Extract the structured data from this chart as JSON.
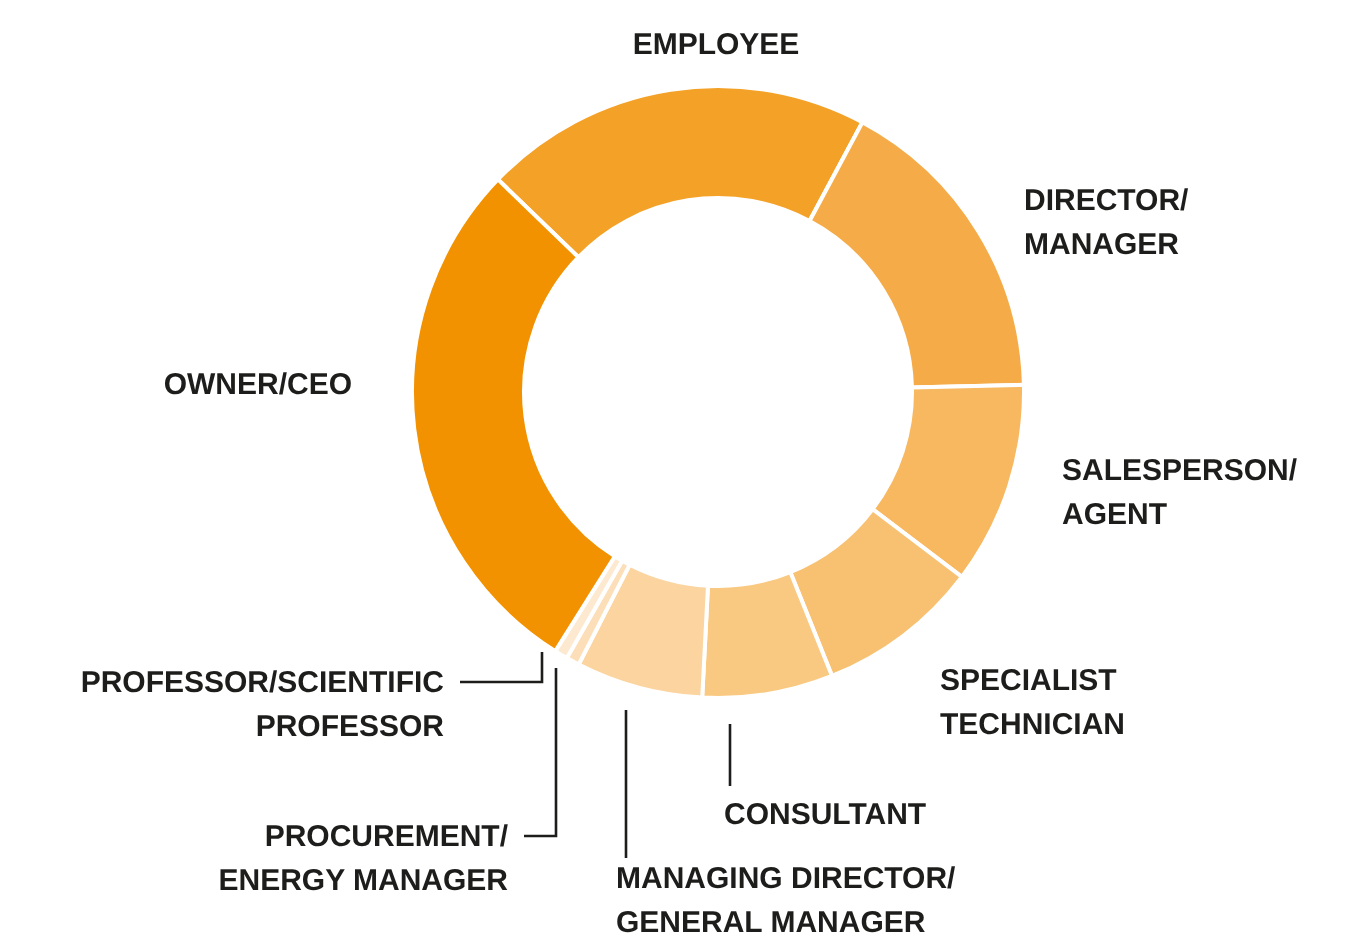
{
  "chart_data": {
    "type": "donut",
    "categories": [
      "EMPLOYEE",
      "DIRECTOR/\nMANAGER",
      "SALESPERSON/\nAGENT",
      "SPECIALIST\nTECHNICIAN",
      "CONSULTANT",
      "MANAGING DIRECTOR/\nGENERAL MANAGER",
      "PROCUREMENT/\nENERGY MANAGER",
      "PROFESSOR/SCIENTIFIC\nPROFESSOR",
      "OWNER/CEO"
    ],
    "values": [
      20.6,
      16.8,
      10.7,
      8.6,
      6.9,
      6.7,
      0.7,
      0.7,
      28.3
    ],
    "colors": [
      "#f4a127",
      "#f5ac48",
      "#f7b860",
      "#f8c172",
      "#f9c982",
      "#fbd4a0",
      "#fcdfb8",
      "#fde9cf",
      "#f39200"
    ]
  }
}
